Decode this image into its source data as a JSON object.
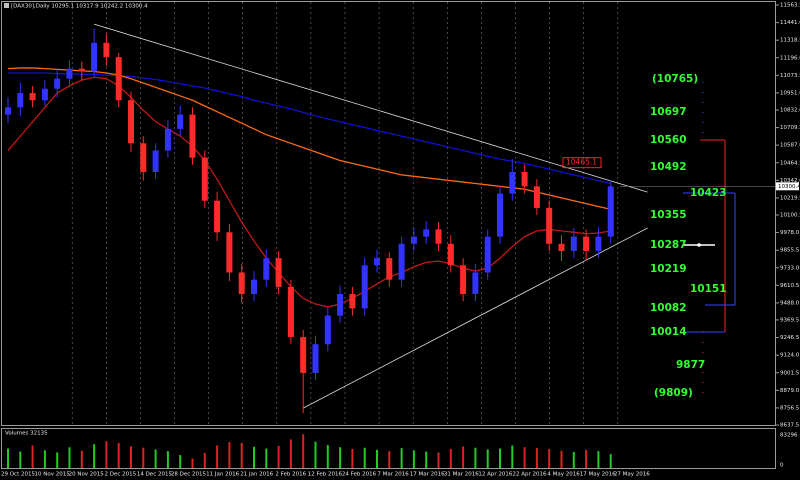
{
  "header": {
    "text": "[DAX30],Daily  10295.1 10317.9 10242.2 10300.4"
  },
  "chart_data": {
    "type": "candlestick",
    "x_labels": [
      "29 Oct 2015",
      "10 Nov 2015",
      "20 Nov 2015",
      "2 Dec 2015",
      "14 Dec 2015",
      "28 Dec 2015",
      "11 Jan 2016",
      "21 Jan 2016",
      "2 Feb 2016",
      "12 Feb 2016",
      "24 Feb 2016",
      "7 Mar 2016",
      "17 Mar 2016",
      "31 Mar 2016",
      "12 Apr 2016",
      "22 Apr 2016",
      "4 May 2016",
      "17 May 2016",
      "27 May 2016"
    ],
    "open": [
      10800,
      10850,
      10950,
      10900,
      10980,
      11050,
      11120,
      11100,
      11300,
      11200,
      10900,
      10600,
      10400,
      10550,
      10700,
      10800,
      10500,
      10200,
      9980,
      9700,
      9550,
      9650,
      9800,
      9600,
      9250,
      9000,
      9200,
      9400,
      9550,
      9450,
      9750,
      9800,
      9650,
      9900,
      9950,
      10000,
      9900,
      9750,
      9550,
      9700,
      9950,
      10250,
      10400,
      10300,
      10150,
      9900,
      9850,
      9950,
      9850,
      9950
    ],
    "high": [
      10920,
      11020,
      11000,
      11040,
      11110,
      11180,
      11170,
      11400,
      11360,
      11230,
      10960,
      10650,
      10600,
      10760,
      10860,
      10850,
      10550,
      10260,
      10040,
      9760,
      9710,
      9860,
      9850,
      9650,
      9300,
      9260,
      9460,
      9610,
      9600,
      9800,
      9860,
      9840,
      9950,
      10010,
      10060,
      10050,
      9960,
      9800,
      9760,
      10000,
      10300,
      10490,
      10450,
      10350,
      10200,
      9960,
      10010,
      10000,
      10020,
      10340
    ],
    "low": [
      10740,
      10790,
      10850,
      10860,
      10920,
      10990,
      11040,
      11060,
      11140,
      10850,
      10540,
      10340,
      10350,
      10500,
      10650,
      10450,
      10150,
      9920,
      9640,
      9490,
      9500,
      9600,
      9550,
      9200,
      8720,
      8950,
      9150,
      9350,
      9400,
      9400,
      9700,
      9600,
      9600,
      9850,
      9900,
      9850,
      9700,
      9500,
      9500,
      9650,
      9900,
      10200,
      10250,
      10100,
      9850,
      9780,
      9800,
      9780,
      9800,
      9900
    ],
    "close": [
      10850,
      10950,
      10900,
      10980,
      11050,
      11120,
      11100,
      11300,
      11200,
      10900,
      10600,
      10400,
      10550,
      10700,
      10800,
      10500,
      10200,
      9980,
      9700,
      9550,
      9650,
      9800,
      9600,
      9250,
      9000,
      9200,
      9400,
      9550,
      9450,
      9750,
      9800,
      9650,
      9900,
      9950,
      10000,
      9900,
      9750,
      9550,
      9700,
      9950,
      10250,
      10400,
      10300,
      10150,
      9900,
      9850,
      9950,
      9850,
      9950,
      10300
    ],
    "up_color": "#3333ff",
    "down_color": "#ff2a2a",
    "ylim": [
      8637.5,
      11563.5
    ],
    "yticks": [
      11563.5,
      {
        "value": 11441,
        "label": "11441.0"
      },
      11318.5,
      {
        "value": 11196,
        "label": "11196.0"
      },
      11073.5,
      {
        "value": 10951,
        "label": "10951.0"
      },
      {
        "value": 10832,
        "label": "10832.0"
      },
      10709.5,
      {
        "value": 10587,
        "label": "10587.0"
      },
      10464.5,
      {
        "value": 10342,
        "label": "10342.0"
      },
      10219.5,
      10100.5,
      {
        "value": 9978,
        "label": "9978.0"
      },
      9855.5,
      {
        "value": 9733,
        "label": "9733.0"
      },
      9610.5,
      {
        "value": 9488,
        "label": "9488.0"
      },
      9369.5,
      9246.5,
      {
        "value": 9124,
        "label": "9124.0"
      },
      9001.5,
      {
        "value": 8879,
        "label": "8879.0"
      },
      8756.5,
      8637.5
    ],
    "moving_averages": [
      {
        "color": "#1010d0",
        "values": [
          11090,
          11090,
          11090,
          11090,
          11085,
          11085,
          11080,
          11080,
          11075,
          11070,
          11065,
          11055,
          11045,
          11030,
          11015,
          11000,
          10985,
          10965,
          10945,
          10925,
          10900,
          10880,
          10860,
          10840,
          10815,
          10790,
          10770,
          10750,
          10730,
          10710,
          10690,
          10670,
          10650,
          10630,
          10610,
          10590,
          10570,
          10550,
          10530,
          10510,
          10490,
          10475,
          10460,
          10440,
          10420,
          10400,
          10380,
          10360,
          10340,
          10320
        ]
      },
      {
        "color": "#ff6a10",
        "values": [
          11120,
          11125,
          11125,
          11120,
          11115,
          11110,
          11105,
          11100,
          11090,
          11075,
          11050,
          11020,
          10990,
          10960,
          10930,
          10900,
          10860,
          10820,
          10780,
          10740,
          10700,
          10660,
          10630,
          10600,
          10570,
          10540,
          10510,
          10480,
          10460,
          10440,
          10420,
          10400,
          10380,
          10370,
          10360,
          10350,
          10340,
          10330,
          10320,
          10310,
          10300,
          10290,
          10280,
          10260,
          10240,
          10220,
          10200,
          10180,
          10160,
          10140
        ]
      },
      {
        "color": "#c01818",
        "values": [
          10550,
          10650,
          10750,
          10850,
          10950,
          11000,
          11040,
          11060,
          11050,
          11000,
          10920,
          10830,
          10750,
          10700,
          10650,
          10580,
          10480,
          10350,
          10200,
          10050,
          9920,
          9800,
          9700,
          9600,
          9520,
          9480,
          9460,
          9480,
          9520,
          9570,
          9620,
          9670,
          9700,
          9740,
          9770,
          9780,
          9760,
          9730,
          9710,
          9730,
          9800,
          9880,
          9950,
          9990,
          10000,
          9990,
          9980,
          9970,
          9975,
          9990
        ]
      }
    ],
    "trendlines": [
      {
        "x": [
          7,
          52
        ],
        "y": [
          11430,
          10260
        ]
      },
      {
        "x": [
          24,
          52
        ],
        "y": [
          8755,
          10010
        ]
      }
    ],
    "last_price": 10300.4,
    "price_marker": 10465.1,
    "volume": {
      "label": "Volumes 32135",
      "ylim": [
        0,
        83296
      ],
      "yticks": [
        0,
        83296
      ],
      "values": [
        45000,
        38000,
        52000,
        41000,
        36000,
        48000,
        40000,
        55000,
        62000,
        58000,
        50000,
        47000,
        43000,
        39000,
        30000,
        22000,
        35000,
        52000,
        60000,
        58000,
        49000,
        45000,
        51000,
        66000,
        78000,
        61000,
        53000,
        48000,
        44000,
        47000,
        42000,
        39000,
        46000,
        41000,
        38000,
        36000,
        44000,
        50000,
        47000,
        43000,
        45000,
        52000,
        48000,
        46000,
        44000,
        40000,
        37000,
        42000,
        39000,
        32135
      ]
    },
    "levels": [
      "(10765)",
      "10697",
      "10560",
      "10492",
      "10423",
      "10355",
      "10287",
      "10219",
      "10151",
      "10082",
      "10014",
      "9877",
      "(9809)"
    ]
  }
}
